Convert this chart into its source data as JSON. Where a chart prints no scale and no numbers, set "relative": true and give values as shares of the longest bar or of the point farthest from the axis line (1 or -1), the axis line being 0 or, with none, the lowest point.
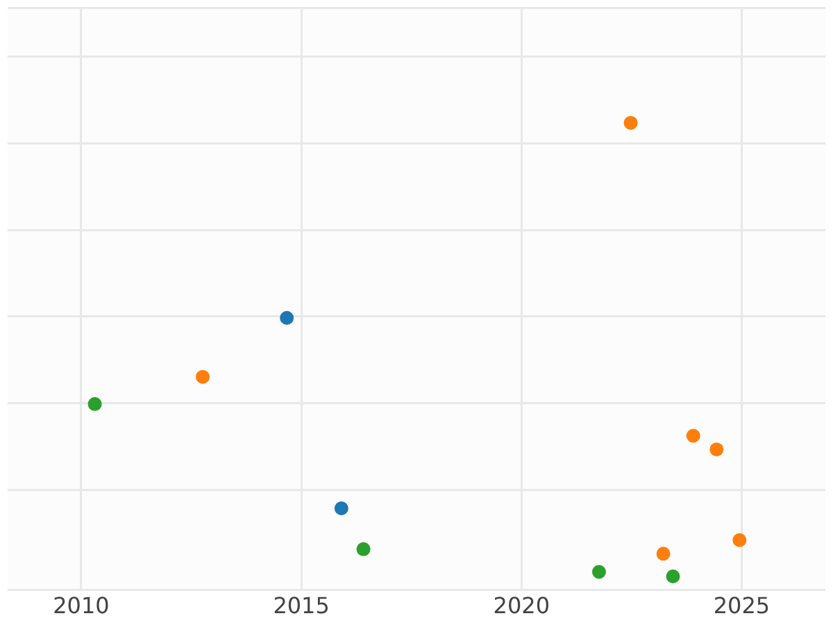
{
  "chart_data": {
    "type": "scatter",
    "relative": true,
    "xlim": [
      2008.33,
      2026.9
    ],
    "xticks": [
      2010,
      2015,
      2020,
      2025
    ],
    "grid": true,
    "legend": false,
    "marker": "circle",
    "series": [
      {
        "color": "#1f77b4",
        "x": [
          2014.67,
          2015.91
        ],
        "values": [
          0.57,
          0.15
        ]
      },
      {
        "color": "#ff7f0e",
        "x": [
          2012.76,
          2022.48,
          2023.9,
          2024.43,
          2023.22,
          2024.95
        ],
        "values": [
          0.44,
          1,
          0.31,
          0.28,
          0.05,
          0.08
        ]
      },
      {
        "color": "#2ca02c",
        "x": [
          2010.31,
          2016.41,
          2021.76,
          2023.44
        ],
        "values": [
          0.38,
          0.06,
          0.01,
          0
        ]
      }
    ]
  }
}
